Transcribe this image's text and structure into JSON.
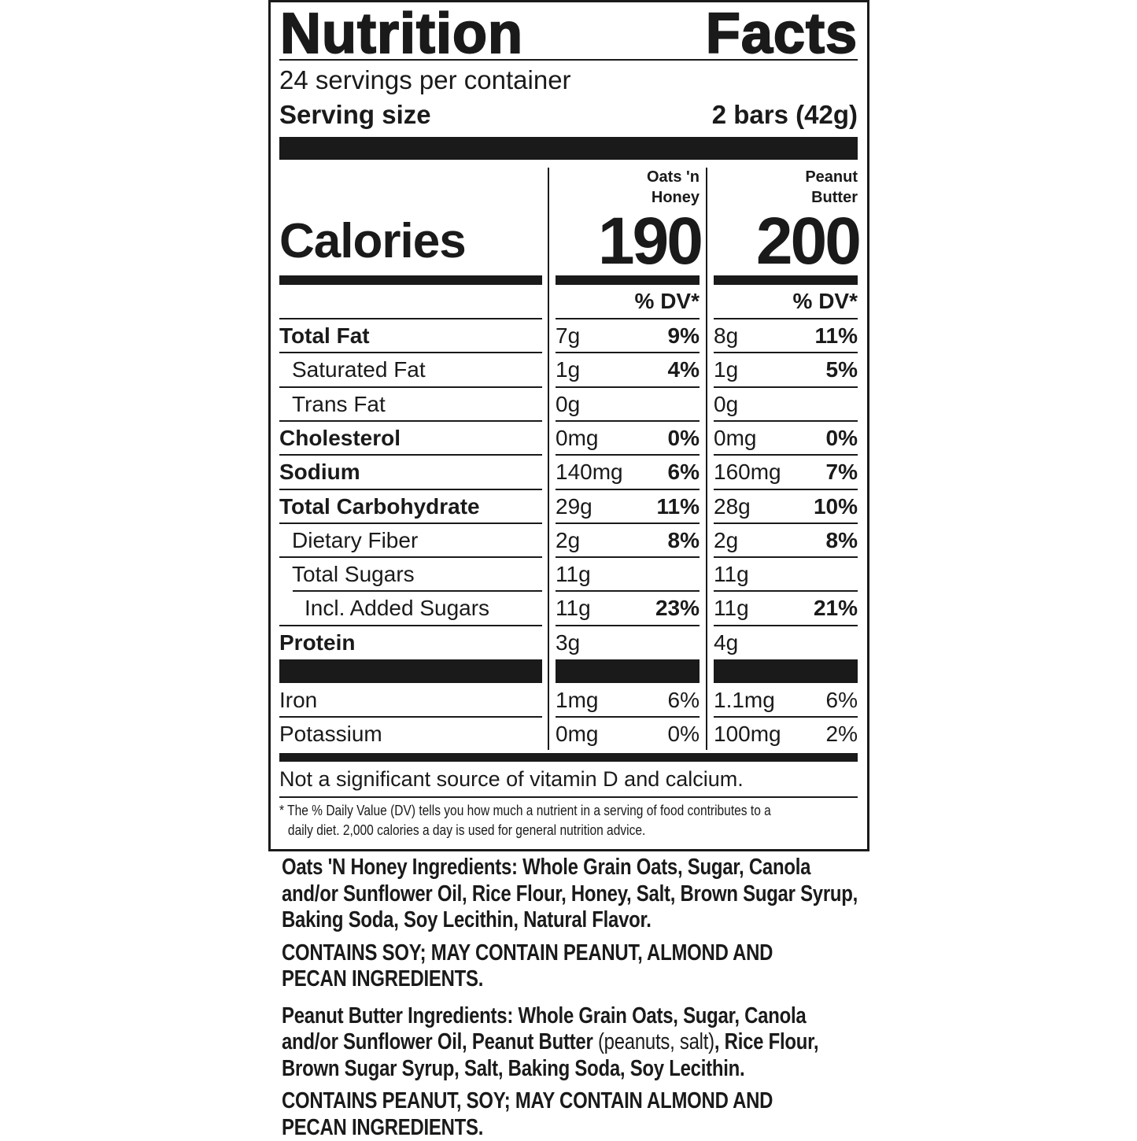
{
  "title": {
    "word1": "Nutrition",
    "word2": "Facts"
  },
  "servings_per_container": "24 servings per container",
  "serving_size": {
    "label": "Serving size",
    "value": "2 bars (42g)"
  },
  "calories_label": "Calories",
  "products": [
    {
      "name_line1": "Oats 'n",
      "name_line2": "Honey",
      "calories": "190",
      "dv_header": "% DV*"
    },
    {
      "name_line1": "Peanut",
      "name_line2": "Butter",
      "calories": "200",
      "dv_header": "% DV*"
    }
  ],
  "nutrients": [
    {
      "label": "Total Fat",
      "values": [
        {
          "amount": "7g",
          "dv": "9%"
        },
        {
          "amount": "8g",
          "dv": "11%"
        }
      ]
    },
    {
      "label": "Saturated Fat",
      "values": [
        {
          "amount": "1g",
          "dv": "4%"
        },
        {
          "amount": "1g",
          "dv": "5%"
        }
      ]
    },
    {
      "label": "Trans Fat",
      "values": [
        {
          "amount": "0g",
          "dv": ""
        },
        {
          "amount": "0g",
          "dv": ""
        }
      ]
    },
    {
      "label": "Cholesterol",
      "values": [
        {
          "amount": "0mg",
          "dv": "0%"
        },
        {
          "amount": "0mg",
          "dv": "0%"
        }
      ]
    },
    {
      "label": "Sodium",
      "values": [
        {
          "amount": "140mg",
          "dv": "6%"
        },
        {
          "amount": "160mg",
          "dv": "7%"
        }
      ]
    },
    {
      "label": "Total Carbohydrate",
      "values": [
        {
          "amount": "29g",
          "dv": "11%"
        },
        {
          "amount": "28g",
          "dv": "10%"
        }
      ]
    },
    {
      "label": "Dietary Fiber",
      "values": [
        {
          "amount": "2g",
          "dv": "8%"
        },
        {
          "amount": "2g",
          "dv": "8%"
        }
      ]
    },
    {
      "label": "Total Sugars",
      "values": [
        {
          "amount": "11g",
          "dv": ""
        },
        {
          "amount": "11g",
          "dv": ""
        }
      ]
    },
    {
      "label": "Incl. Added Sugars",
      "values": [
        {
          "amount": "11g",
          "dv": "23%"
        },
        {
          "amount": "11g",
          "dv": "21%"
        }
      ]
    },
    {
      "label": "Protein",
      "values": [
        {
          "amount": "3g",
          "dv": ""
        },
        {
          "amount": "4g",
          "dv": ""
        }
      ]
    }
  ],
  "minerals": [
    {
      "label": "Iron",
      "values": [
        {
          "amount": "1mg",
          "dv": "6%"
        },
        {
          "amount": "1.1mg",
          "dv": "6%"
        }
      ]
    },
    {
      "label": "Potassium",
      "values": [
        {
          "amount": "0mg",
          "dv": "0%"
        },
        {
          "amount": "100mg",
          "dv": "2%"
        }
      ]
    }
  ],
  "not_significant": "Not a significant source of vitamin D and calcium.",
  "footnote_line1": "* The % Daily Value (DV) tells you how much a nutrient in a serving of food contributes to a",
  "footnote_line2": "daily diet. 2,000 calories a day is used for general nutrition advice.",
  "ingredients": {
    "oats_honey": "Oats 'N Honey Ingredients: Whole Grain Oats, Sugar, Canola and/or Sunflower Oil, Rice Flour, Honey, Salt, Brown Sugar Syrup, Baking Soda, Soy Lecithin, Natural Flavor.",
    "oats_honey_allergens": "CONTAINS SOY; MAY CONTAIN PEANUT, ALMOND AND PECAN INGREDIENTS.",
    "peanut_butter_part1": "Peanut Butter Ingredients: Whole Grain Oats, Sugar, Canola and/or Sunflower Oil, Peanut Butter ",
    "peanut_butter_part2": "(peanuts, salt)",
    "peanut_butter_part3": ", Rice Flour, Brown Sugar Syrup, Salt, Baking Soda, Soy Lecithin.",
    "peanut_butter_allergens": "CONTAINS PEANUT, SOY; MAY CONTAIN ALMOND AND PECAN INGREDIENTS."
  }
}
